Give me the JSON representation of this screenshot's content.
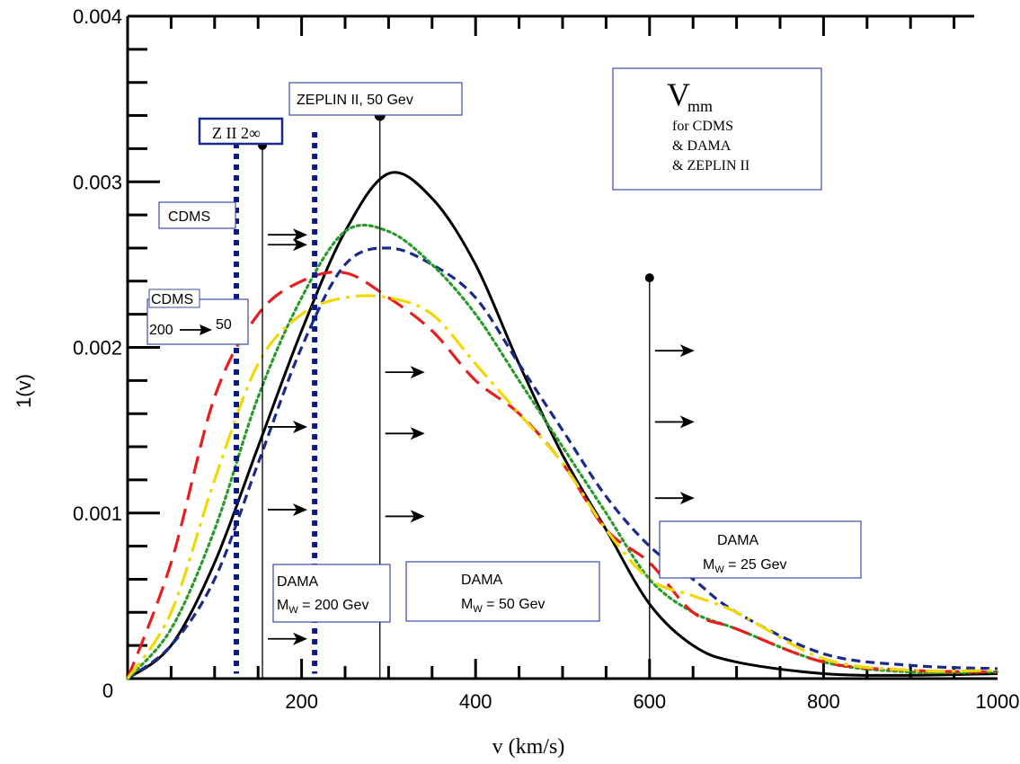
{
  "chart_data": {
    "type": "line",
    "title": "",
    "xlabel": "v (km/s)",
    "ylabel": "1(v)",
    "xlim": [
      0,
      1000
    ],
    "ylim": [
      0,
      0.004
    ],
    "x_ticks": [
      "0",
      "200",
      "400",
      "600",
      "800",
      "1000"
    ],
    "y_ticks": [
      "0.001",
      "0.002",
      "0.003",
      "0.004"
    ],
    "grid": false,
    "series": [
      {
        "style": "solid",
        "color": "#000000",
        "points": [
          [
            0,
            0
          ],
          [
            50,
            0.0002
          ],
          [
            100,
            0.0007
          ],
          [
            150,
            0.0014
          ],
          [
            200,
            0.0021
          ],
          [
            250,
            0.0027
          ],
          [
            300,
            0.00305
          ],
          [
            350,
            0.0029
          ],
          [
            400,
            0.0025
          ],
          [
            450,
            0.0019
          ],
          [
            500,
            0.00135
          ],
          [
            550,
            0.0009
          ],
          [
            600,
            0.00045
          ],
          [
            650,
            0.0002
          ],
          [
            700,
            0.0001
          ],
          [
            800,
            3e-05
          ],
          [
            900,
            2e-05
          ],
          [
            1000,
            3e-05
          ]
        ]
      },
      {
        "style": "short-dash",
        "color": "#1a2a8a",
        "points": [
          [
            0,
            0
          ],
          [
            50,
            0.0002
          ],
          [
            100,
            0.0006
          ],
          [
            150,
            0.0013
          ],
          [
            200,
            0.002
          ],
          [
            250,
            0.0025
          ],
          [
            300,
            0.0026
          ],
          [
            350,
            0.0025
          ],
          [
            400,
            0.0023
          ],
          [
            450,
            0.0019
          ],
          [
            500,
            0.0015
          ],
          [
            550,
            0.0011
          ],
          [
            600,
            0.0008
          ],
          [
            650,
            0.0006
          ],
          [
            700,
            0.0004
          ],
          [
            800,
            0.00015
          ],
          [
            900,
            8e-05
          ],
          [
            1000,
            6e-05
          ]
        ]
      },
      {
        "style": "dotted",
        "color": "#2a9a2a",
        "points": [
          [
            0,
            0
          ],
          [
            50,
            0.0003
          ],
          [
            100,
            0.0009
          ],
          [
            150,
            0.0017
          ],
          [
            200,
            0.0023
          ],
          [
            250,
            0.0027
          ],
          [
            300,
            0.0027
          ],
          [
            350,
            0.0025
          ],
          [
            400,
            0.0022
          ],
          [
            450,
            0.0018
          ],
          [
            500,
            0.0014
          ],
          [
            550,
            0.001
          ],
          [
            600,
            0.0006
          ],
          [
            650,
            0.0004
          ],
          [
            700,
            0.0003
          ],
          [
            800,
            0.0001
          ],
          [
            900,
            4e-05
          ],
          [
            1000,
            4e-05
          ]
        ]
      },
      {
        "style": "long-dash",
        "color": "#e81e1e",
        "points": [
          [
            0,
            0
          ],
          [
            50,
            0.0007
          ],
          [
            100,
            0.0017
          ],
          [
            150,
            0.0022
          ],
          [
            200,
            0.0024
          ],
          [
            250,
            0.00245
          ],
          [
            300,
            0.0023
          ],
          [
            350,
            0.0021
          ],
          [
            400,
            0.0018
          ],
          [
            450,
            0.0016
          ],
          [
            500,
            0.0013
          ],
          [
            550,
            0.0009
          ],
          [
            600,
            0.0007
          ],
          [
            650,
            0.0004
          ],
          [
            700,
            0.0003
          ],
          [
            800,
            0.0001
          ],
          [
            900,
            5e-05
          ],
          [
            1000,
            4e-05
          ]
        ]
      },
      {
        "style": "dash-dot",
        "color": "#f0d800",
        "points": [
          [
            0,
            0
          ],
          [
            50,
            0.0004
          ],
          [
            100,
            0.0012
          ],
          [
            150,
            0.0019
          ],
          [
            200,
            0.0022
          ],
          [
            250,
            0.0023
          ],
          [
            300,
            0.0023
          ],
          [
            350,
            0.0022
          ],
          [
            400,
            0.0019
          ],
          [
            450,
            0.0016
          ],
          [
            500,
            0.0013
          ],
          [
            550,
            0.0009
          ],
          [
            600,
            0.0006
          ],
          [
            650,
            0.0005
          ],
          [
            700,
            0.0004
          ],
          [
            800,
            0.00012
          ],
          [
            900,
            5e-05
          ],
          [
            1000,
            5e-05
          ]
        ]
      }
    ],
    "dotted_vlines": [
      {
        "x": 125,
        "y_top": 0.0033,
        "color": "#0a1a8a"
      },
      {
        "x": 215,
        "y_top": 0.0033,
        "color": "#0a1a8a"
      }
    ],
    "vmin_lines": [
      {
        "x": 155,
        "y_top": 0.00322,
        "arrows_y": [
          0.00268,
          0.00262,
          0.00152,
          0.00102,
          0.00024
        ]
      },
      {
        "x": 290,
        "y_top": 0.0034,
        "arrows_y": [
          0.00185,
          0.00148,
          0.00098
        ]
      },
      {
        "x": 600,
        "y_top": 0.00242,
        "arrows_y": [
          0.00198,
          0.00155,
          0.00109
        ]
      }
    ],
    "annotations": [
      {
        "id": "zeplin-label",
        "lines": [
          "ZEPLIN II, 50 Gev"
        ]
      },
      {
        "id": "z2-label",
        "lines": [
          "Z II 2∞"
        ]
      },
      {
        "id": "cdms-label",
        "lines": [
          "CDMS"
        ]
      },
      {
        "id": "cdms-range-label",
        "lines": [
          "CDMS",
          "200",
          "50"
        ]
      },
      {
        "id": "vmm-box",
        "lines": [
          "V",
          "mm",
          "for CDMS",
          "& DAMA",
          "& ZEPLIN II"
        ]
      },
      {
        "id": "dama200-label",
        "lines": [
          "DAMA",
          "M",
          "W",
          " = 200 Gev"
        ]
      },
      {
        "id": "dama50-label",
        "lines": [
          "DAMA",
          "M",
          "W",
          " = 50 Gev"
        ]
      },
      {
        "id": "dama25-label",
        "lines": [
          "DAMA",
          "M",
          "W",
          " = 25 Gev"
        ]
      }
    ]
  }
}
